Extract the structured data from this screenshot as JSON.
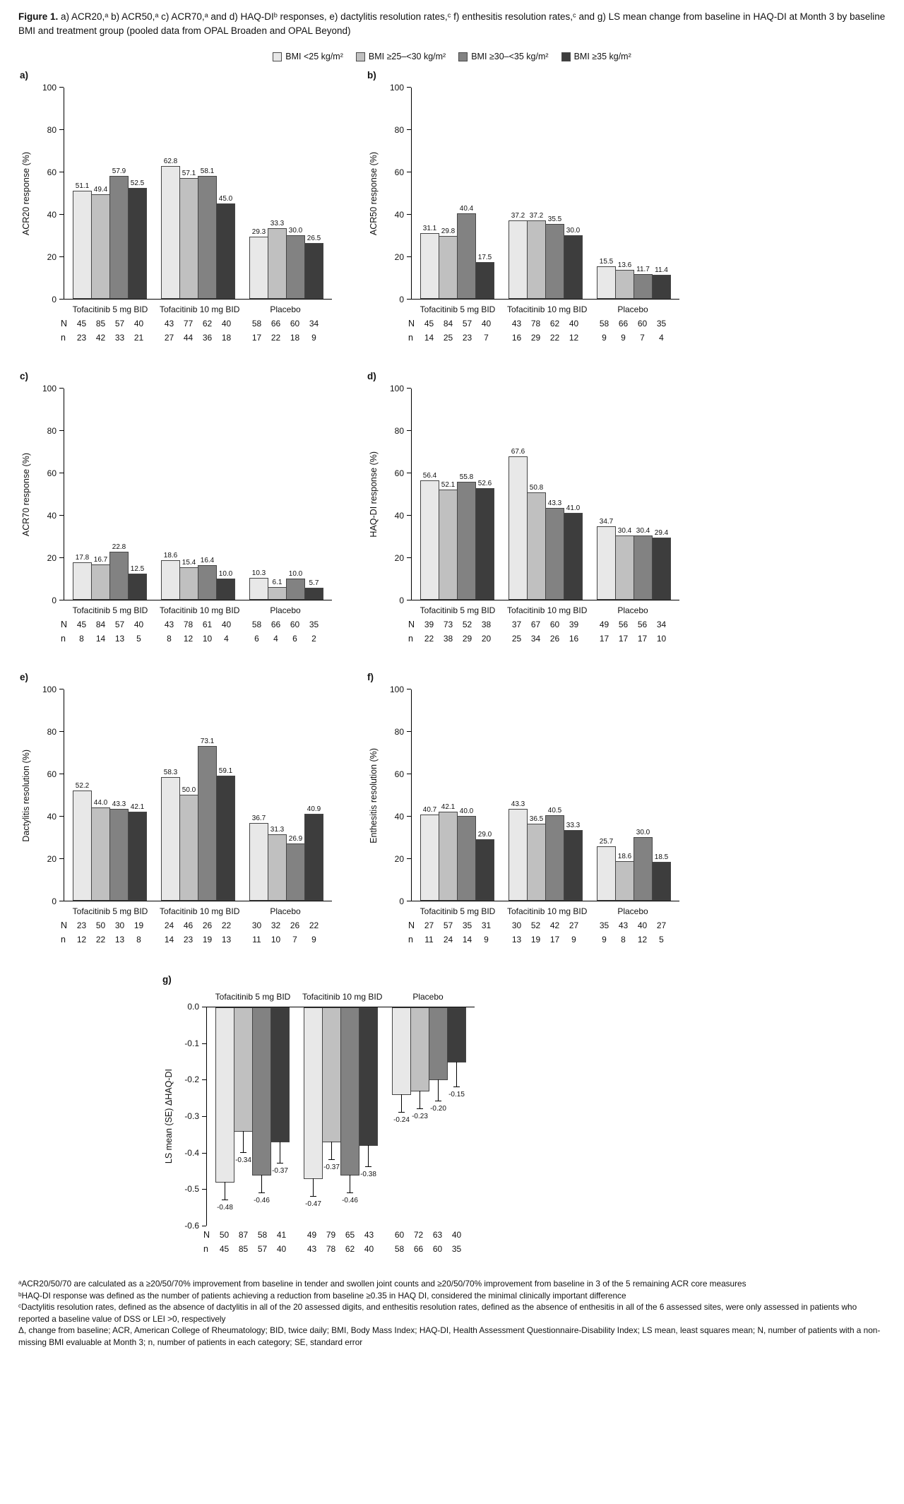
{
  "figure": {
    "title_bold": "Figure 1.",
    "title_rest": " a) ACR20,ᵃ b) ACR50,ᵃ c) ACR70,ᵃ and d) HAQ-DIᵇ responses, e) dactylitis resolution rates,ᶜ f) enthesitis resolution rates,ᶜ and g) LS mean change from baseline in HAQ-DI at Month 3 by baseline BMI and treatment group (pooled data from OPAL Broaden and OPAL Beyond)"
  },
  "legend": {
    "items": [
      {
        "label": "BMI <25 kg/m²",
        "color": "#e8e8e8"
      },
      {
        "label": "BMI ≥25–<30 kg/m²",
        "color": "#c0c0c0"
      },
      {
        "label": "BMI ≥30–<35 kg/m²",
        "color": "#828282"
      },
      {
        "label": "BMI ≥35 kg/m²",
        "color": "#3d3d3d"
      }
    ]
  },
  "chart_data": [
    {
      "id": "a",
      "panel_label": "a)",
      "type": "bar",
      "ylabel": "ACR20 response (%)",
      "ylim": [
        0,
        100
      ],
      "yticks": [
        0,
        20,
        40,
        60,
        80,
        100
      ],
      "decimals": 1,
      "categories": [
        "Tofacitinib 5 mg BID",
        "Tofacitinib 10 mg BID",
        "Placebo"
      ],
      "series": [
        {
          "name": "BMI <25 kg/m²",
          "values": [
            51.1,
            62.8,
            29.3
          ]
        },
        {
          "name": "BMI ≥25–<30 kg/m²",
          "values": [
            49.4,
            57.1,
            33.3
          ]
        },
        {
          "name": "BMI ≥30–<35 kg/m²",
          "values": [
            57.9,
            58.1,
            30.0
          ]
        },
        {
          "name": "BMI ≥35 kg/m²",
          "values": [
            52.5,
            45.0,
            26.5
          ]
        }
      ],
      "table": {
        "N": [
          [
            45,
            85,
            57,
            40
          ],
          [
            43,
            77,
            62,
            40
          ],
          [
            58,
            66,
            60,
            34
          ]
        ],
        "n": [
          [
            23,
            42,
            33,
            21
          ],
          [
            27,
            44,
            36,
            18
          ],
          [
            17,
            22,
            18,
            9
          ]
        ]
      }
    },
    {
      "id": "b",
      "panel_label": "b)",
      "type": "bar",
      "ylabel": "ACR50 response (%)",
      "ylim": [
        0,
        100
      ],
      "yticks": [
        0,
        20,
        40,
        60,
        80,
        100
      ],
      "decimals": 1,
      "categories": [
        "Tofacitinib 5 mg BID",
        "Tofacitinib 10 mg BID",
        "Placebo"
      ],
      "series": [
        {
          "name": "BMI <25 kg/m²",
          "values": [
            31.1,
            37.2,
            15.5
          ]
        },
        {
          "name": "BMI ≥25–<30 kg/m²",
          "values": [
            29.8,
            37.2,
            13.6
          ]
        },
        {
          "name": "BMI ≥30–<35 kg/m²",
          "values": [
            40.4,
            35.5,
            11.7
          ]
        },
        {
          "name": "BMI ≥35 kg/m²",
          "values": [
            17.5,
            30.0,
            11.4
          ]
        }
      ],
      "table": {
        "N": [
          [
            45,
            84,
            57,
            40
          ],
          [
            43,
            78,
            62,
            40
          ],
          [
            58,
            66,
            60,
            35
          ]
        ],
        "n": [
          [
            14,
            25,
            23,
            7
          ],
          [
            16,
            29,
            22,
            12
          ],
          [
            9,
            9,
            7,
            4
          ]
        ]
      }
    },
    {
      "id": "c",
      "panel_label": "c)",
      "type": "bar",
      "ylabel": "ACR70 response (%)",
      "ylim": [
        0,
        100
      ],
      "yticks": [
        0,
        20,
        40,
        60,
        80,
        100
      ],
      "decimals": 1,
      "categories": [
        "Tofacitinib 5 mg BID",
        "Tofacitinib 10 mg BID",
        "Placebo"
      ],
      "series": [
        {
          "name": "BMI <25 kg/m²",
          "values": [
            17.8,
            18.6,
            10.3
          ]
        },
        {
          "name": "BMI ≥25–<30 kg/m²",
          "values": [
            16.7,
            15.4,
            6.1
          ]
        },
        {
          "name": "BMI ≥30–<35 kg/m²",
          "values": [
            22.8,
            16.4,
            10.0
          ]
        },
        {
          "name": "BMI ≥35 kg/m²",
          "values": [
            12.5,
            10.0,
            5.7
          ]
        }
      ],
      "table": {
        "N": [
          [
            45,
            84,
            57,
            40
          ],
          [
            43,
            78,
            61,
            40
          ],
          [
            58,
            66,
            60,
            35
          ]
        ],
        "n": [
          [
            8,
            14,
            13,
            5
          ],
          [
            8,
            12,
            10,
            4
          ],
          [
            6,
            4,
            6,
            2
          ]
        ]
      }
    },
    {
      "id": "d",
      "panel_label": "d)",
      "type": "bar",
      "ylabel": "HAQ-DI response (%)",
      "ylim": [
        0,
        100
      ],
      "yticks": [
        0,
        20,
        40,
        60,
        80,
        100
      ],
      "decimals": 1,
      "categories": [
        "Tofacitinib 5 mg BID",
        "Tofacitinib 10 mg BID",
        "Placebo"
      ],
      "series": [
        {
          "name": "BMI <25 kg/m²",
          "values": [
            56.4,
            67.6,
            34.7
          ]
        },
        {
          "name": "BMI ≥25–<30 kg/m²",
          "values": [
            52.1,
            50.8,
            30.4
          ]
        },
        {
          "name": "BMI ≥30–<35 kg/m²",
          "values": [
            55.8,
            43.3,
            30.4
          ]
        },
        {
          "name": "BMI ≥35 kg/m²",
          "values": [
            52.6,
            41.0,
            29.4
          ]
        }
      ],
      "table": {
        "N": [
          [
            39,
            73,
            52,
            38
          ],
          [
            37,
            67,
            60,
            39
          ],
          [
            49,
            56,
            56,
            34
          ]
        ],
        "n": [
          [
            22,
            38,
            29,
            20
          ],
          [
            25,
            34,
            26,
            16
          ],
          [
            17,
            17,
            17,
            10
          ]
        ]
      }
    },
    {
      "id": "e",
      "panel_label": "e)",
      "type": "bar",
      "ylabel": "Dactylitis resolution (%)",
      "ylim": [
        0,
        100
      ],
      "yticks": [
        0,
        20,
        40,
        60,
        80,
        100
      ],
      "decimals": 1,
      "categories": [
        "Tofacitinib 5 mg BID",
        "Tofacitinib 10 mg BID",
        "Placebo"
      ],
      "series": [
        {
          "name": "BMI <25 kg/m²",
          "values": [
            52.2,
            58.3,
            36.7
          ]
        },
        {
          "name": "BMI ≥25–<30 kg/m²",
          "values": [
            44.0,
            50.0,
            31.3
          ]
        },
        {
          "name": "BMI ≥30–<35 kg/m²",
          "values": [
            43.3,
            73.1,
            26.9
          ]
        },
        {
          "name": "BMI ≥35 kg/m²",
          "values": [
            42.1,
            59.1,
            40.9
          ]
        }
      ],
      "table": {
        "N": [
          [
            23,
            50,
            30,
            19
          ],
          [
            24,
            46,
            26,
            22
          ],
          [
            30,
            32,
            26,
            22
          ]
        ],
        "n": [
          [
            12,
            22,
            13,
            8
          ],
          [
            14,
            23,
            19,
            13
          ],
          [
            11,
            10,
            7,
            9
          ]
        ]
      }
    },
    {
      "id": "f",
      "panel_label": "f)",
      "type": "bar",
      "ylabel": "Enthesitis resolution (%)",
      "ylim": [
        0,
        100
      ],
      "yticks": [
        0,
        20,
        40,
        60,
        80,
        100
      ],
      "decimals": 1,
      "categories": [
        "Tofacitinib 5 mg BID",
        "Tofacitinib 10 mg BID",
        "Placebo"
      ],
      "series": [
        {
          "name": "BMI <25 kg/m²",
          "values": [
            40.7,
            43.3,
            25.7
          ]
        },
        {
          "name": "BMI ≥25–<30 kg/m²",
          "values": [
            42.1,
            36.5,
            18.6
          ]
        },
        {
          "name": "BMI ≥30–<35 kg/m²",
          "values": [
            40.0,
            40.5,
            30.0
          ]
        },
        {
          "name": "BMI ≥35 kg/m²",
          "values": [
            29.0,
            33.3,
            18.5
          ]
        }
      ],
      "table": {
        "N": [
          [
            27,
            57,
            35,
            31
          ],
          [
            30,
            52,
            42,
            27
          ],
          [
            35,
            43,
            40,
            27
          ]
        ],
        "n": [
          [
            11,
            24,
            14,
            9
          ],
          [
            13,
            19,
            17,
            9
          ],
          [
            9,
            8,
            12,
            5
          ]
        ]
      }
    },
    {
      "id": "g",
      "panel_label": "g)",
      "type": "bar",
      "ylabel": "LS mean (SE) ΔHAQ-DI",
      "ylim": [
        -0.6,
        0
      ],
      "yticks": [
        0,
        -0.1,
        -0.2,
        -0.3,
        -0.4,
        -0.5,
        -0.6
      ],
      "decimals": 2,
      "categories": [
        "Tofacitinib 5 mg BID",
        "Tofacitinib 10 mg BID",
        "Placebo"
      ],
      "series": [
        {
          "name": "BMI <25 kg/m²",
          "values": [
            -0.48,
            -0.47,
            -0.24
          ]
        },
        {
          "name": "BMI ≥25–<30 kg/m²",
          "values": [
            -0.34,
            -0.37,
            -0.23
          ]
        },
        {
          "name": "BMI ≥30–<35 kg/m²",
          "values": [
            -0.46,
            -0.46,
            -0.2
          ]
        },
        {
          "name": "BMI ≥35 kg/m²",
          "values": [
            -0.37,
            -0.38,
            -0.15
          ]
        }
      ],
      "se": [
        [
          0.05,
          0.05,
          0.05
        ],
        [
          0.06,
          0.05,
          0.05
        ],
        [
          0.05,
          0.05,
          0.06
        ],
        [
          0.06,
          0.06,
          0.07
        ]
      ],
      "table": {
        "N": [
          [
            50,
            87,
            58,
            41
          ],
          [
            49,
            79,
            65,
            43
          ],
          [
            60,
            72,
            63,
            40
          ]
        ],
        "n": [
          [
            45,
            85,
            57,
            40
          ],
          [
            43,
            78,
            62,
            40
          ],
          [
            58,
            66,
            60,
            35
          ]
        ]
      }
    }
  ],
  "footnotes": [
    "ᵃACR20/50/70 are calculated as a ≥20/50/70% improvement from baseline in tender and swollen joint counts and ≥20/50/70% improvement from baseline in 3 of the 5 remaining ACR core measures",
    "ᵇHAQ-DI response was defined as the number of patients achieving a reduction from baseline ≥0.35 in HAQ DI, considered the minimal clinically important difference",
    "ᶜDactylitis resolution rates, defined as the absence of dactylitis in all of the 20 assessed digits, and enthesitis resolution rates, defined as the absence of enthesitis in all of the 6 assessed sites, were only assessed in patients who reported a baseline value of DSS or LEI >0, respectively",
    "Δ, change from baseline; ACR, American College of Rheumatology; BID, twice daily; BMI, Body Mass Index; HAQ-DI, Health Assessment Questionnaire-Disability Index; LS mean, least squares mean; N, number of patients with a non-missing BMI evaluable at Month 3; n, number of patients in each category; SE, standard error"
  ]
}
